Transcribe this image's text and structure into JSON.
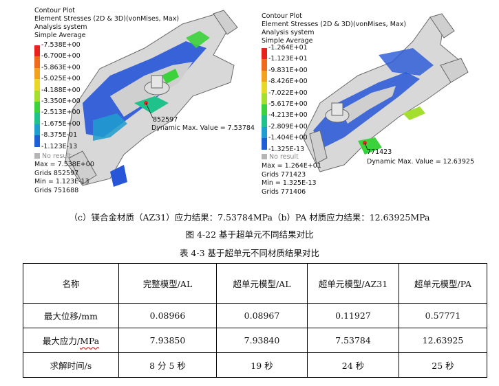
{
  "figure_left": {
    "header": [
      "Contour Plot",
      "Element Stresses (2D & 3D)(vonMises, Max)",
      "Analysis system",
      "Simple Average"
    ],
    "legend": {
      "values": [
        "7.538E+00",
        "6.700E+00",
        "5.863E+00",
        "5.025E+00",
        "4.188E+00",
        "3.350E+00",
        "2.513E+00",
        "1.675E+00",
        "8.375E-01",
        "1.123E-13"
      ],
      "colors": [
        "#e8231e",
        "#f06a1c",
        "#f2a21e",
        "#e8d827",
        "#a4de2e",
        "#3cd23c",
        "#1fc28a",
        "#1f9ecf",
        "#1f5fd6",
        "#1f2bc8"
      ]
    },
    "no_result": "No result",
    "stats": [
      "Max = 7.538E+00",
      "Grids 852597",
      "Min = 1.123E-13",
      "Grids 751688"
    ],
    "annotation_node": "852597",
    "annotation_dynamic": "Dynamic Max. Value = 7.53784"
  },
  "figure_right": {
    "header": [
      "Contour Plot",
      "Element Stresses (2D & 3D)(vonMises, Max)",
      "Analysis system",
      "Simple Average"
    ],
    "legend": {
      "values": [
        "1.264E+01",
        "1.123E+01",
        "9.831E+00",
        "8.426E+00",
        "7.022E+00",
        "5.617E+00",
        "4.213E+00",
        "2.809E+00",
        "1.404E+00",
        "1.325E-13"
      ],
      "colors": [
        "#e8231e",
        "#f06a1c",
        "#f2a21e",
        "#e8d827",
        "#a4de2e",
        "#3cd23c",
        "#1fc28a",
        "#1f9ecf",
        "#1f5fd6",
        "#1f2bc8"
      ]
    },
    "no_result": "No result",
    "stats": [
      "Max = 1.264E+01",
      "Grids 771423",
      "Min = 1.325E-13",
      "Grids 771406"
    ],
    "annotation_node": "771423",
    "annotation_dynamic": "Dynamic Max. Value = 12.63925"
  },
  "subcaption": "（c）镁合金材质（AZ31）应力结果：7.53784MPa（b）PA 材质应力结果：12.63925MPa",
  "figure_title": "图 4-22  基于超单元不同结果对比",
  "table_title": "表 4-3  基于超单元不同材质结果对比",
  "table": {
    "headers": [
      "名称",
      "完整模型/AL",
      "超单元模型/AL",
      "超单元模型/AZ31",
      "超单元模型/PA"
    ],
    "rows": [
      [
        "最大位移/mm",
        "0.08966",
        "0.08967",
        "0.11927",
        "0.57771"
      ],
      [
        "最大应力/MPa",
        "7.93850",
        "7.93840",
        "7.53784",
        "12.63925"
      ],
      [
        "求解时间/s",
        "8 分 5 秒",
        "19 秒",
        "24 秒",
        "25 秒"
      ]
    ]
  }
}
